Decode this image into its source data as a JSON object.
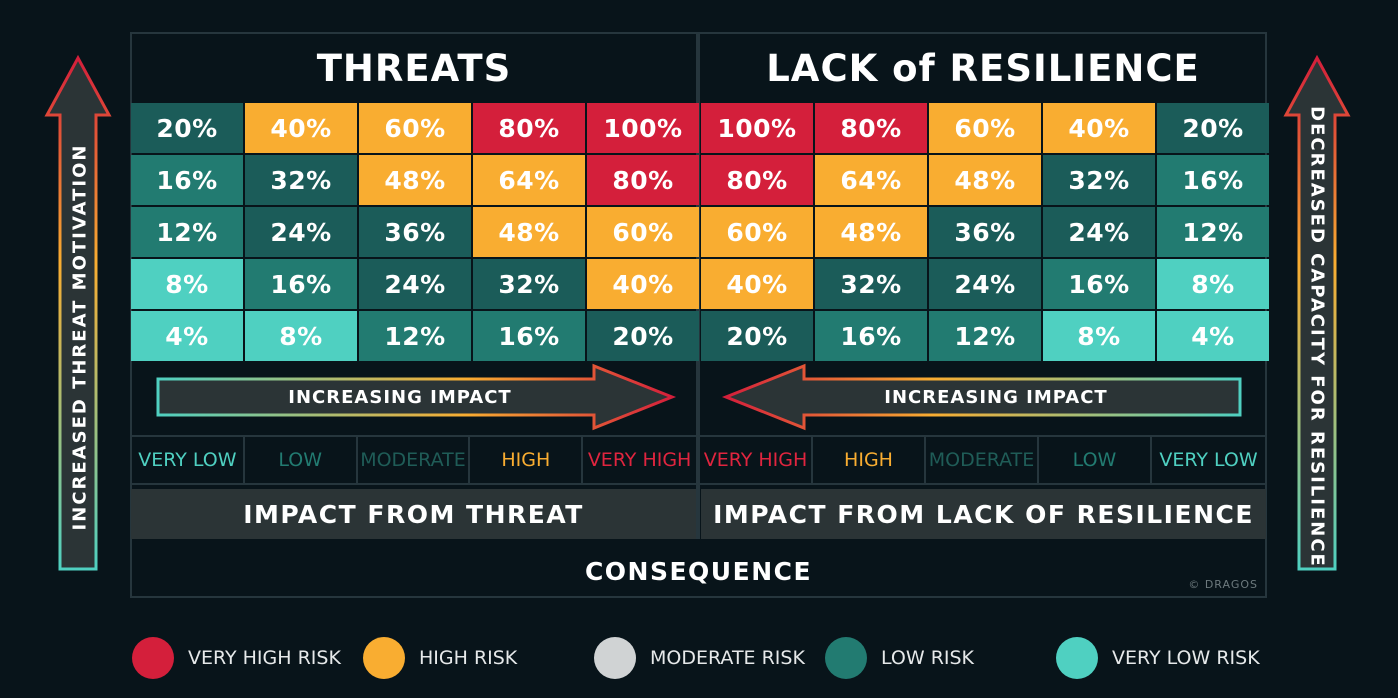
{
  "headers": {
    "left": "THREATS",
    "right": "LACK of RESILIENCE"
  },
  "colors": {
    "very_high": "#d41f3b",
    "high": "#f9ad31",
    "moderate": "#d0d3d4",
    "low": "#227b71",
    "low_dark": "#1b5c59",
    "very_low": "#4fd0c1"
  },
  "threats_grid": [
    [
      "20%",
      "40%",
      "60%",
      "80%",
      "100%"
    ],
    [
      "16%",
      "32%",
      "48%",
      "64%",
      "80%"
    ],
    [
      "12%",
      "24%",
      "36%",
      "48%",
      "60%"
    ],
    [
      "8%",
      "16%",
      "24%",
      "32%",
      "40%"
    ],
    [
      "4%",
      "8%",
      "12%",
      "16%",
      "20%"
    ]
  ],
  "resilience_grid": [
    [
      "100%",
      "80%",
      "60%",
      "40%",
      "20%"
    ],
    [
      "80%",
      "64%",
      "48%",
      "32%",
      "16%"
    ],
    [
      "60%",
      "48%",
      "36%",
      "24%",
      "12%"
    ],
    [
      "40%",
      "32%",
      "24%",
      "16%",
      "8%"
    ],
    [
      "20%",
      "16%",
      "12%",
      "8%",
      "4%"
    ]
  ],
  "arrows": {
    "left": "INCREASING IMPACT",
    "right": "INCREASING IMPACT"
  },
  "impact_levels_left": [
    "VERY LOW",
    "LOW",
    "MODERATE",
    "HIGH",
    "VERY HIGH"
  ],
  "impact_levels_right": [
    "VERY HIGH",
    "HIGH",
    "MODERATE",
    "LOW",
    "VERY LOW"
  ],
  "bands": {
    "left": "IMPACT FROM THREAT",
    "right": "IMPACT FROM LACK OF RESILIENCE"
  },
  "consequence": "CONSEQUENCE",
  "side_labels": {
    "left": "INCREASED THREAT MOTIVATION",
    "right": "DECREASED CAPACITY FOR RESILIENCE"
  },
  "copyright": "© DRAGOS",
  "legend": [
    {
      "label": "VERY HIGH RISK",
      "color": "#d41f3b"
    },
    {
      "label": "HIGH RISK",
      "color": "#f9ad31"
    },
    {
      "label": "MODERATE RISK",
      "color": "#d0d3d4"
    },
    {
      "label": "LOW RISK",
      "color": "#227b71"
    },
    {
      "label": "VERY LOW RISK",
      "color": "#4fd0c1"
    }
  ]
}
